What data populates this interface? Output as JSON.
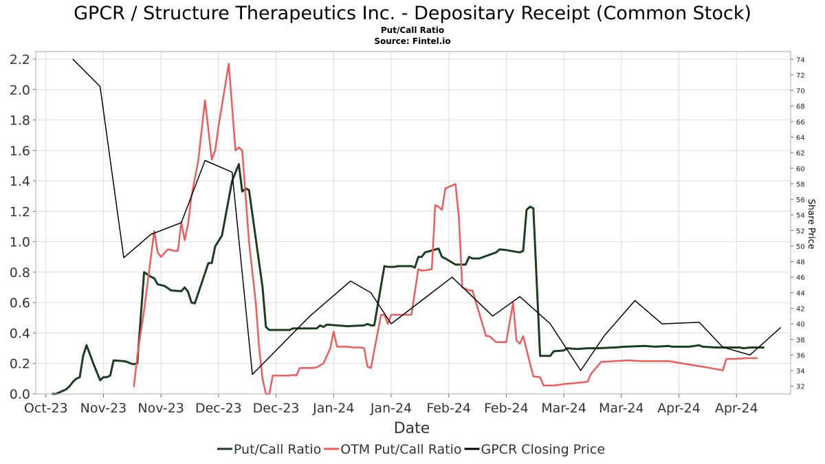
{
  "chart_data": {
    "type": "line",
    "title": "GPCR / Structure Therapeutics Inc. - Depositary Receipt (Common Stock)",
    "subtitle": "Put/Call Ratio",
    "source": "Source: Fintel.io",
    "xlabel": "Date",
    "y2label": "Share Price",
    "x_ticks": [
      {
        "label": "Oct-23",
        "day": 0
      },
      {
        "label": "Nov-23",
        "day": 17
      },
      {
        "label": "Nov-23",
        "day": 34
      },
      {
        "label": "Dec-23",
        "day": 51
      },
      {
        "label": "Dec-23",
        "day": 68
      },
      {
        "label": "Jan-24",
        "day": 85
      },
      {
        "label": "Jan-24",
        "day": 102
      },
      {
        "label": "Feb-24",
        "day": 119
      },
      {
        "label": "Feb-24",
        "day": 136
      },
      {
        "label": "Mar-24",
        "day": 153
      },
      {
        "label": "Mar-24",
        "day": 170
      },
      {
        "label": "Apr-24",
        "day": 187
      },
      {
        "label": "Apr-24",
        "day": 204
      }
    ],
    "xlim": [
      -3,
      220
    ],
    "ylim": [
      0,
      2.25
    ],
    "y_ticks": [
      "0.0",
      "0.2",
      "0.4",
      "0.6",
      "0.8",
      "1.0",
      "1.2",
      "1.4",
      "1.6",
      "1.8",
      "2.0",
      "2.2"
    ],
    "y2lim": [
      31,
      75
    ],
    "y2_ticks": [
      "32",
      "34",
      "36",
      "38",
      "40",
      "42",
      "44",
      "46",
      "48",
      "50",
      "52",
      "54",
      "56",
      "58",
      "60",
      "62",
      "64",
      "66",
      "68",
      "70",
      "72",
      "74"
    ],
    "grid": true,
    "legend": "bottom",
    "series": [
      {
        "name": "Put/Call Ratio",
        "color": "#1a3d1f",
        "axis": "left",
        "width": 3,
        "points": [
          [
            2,
            0
          ],
          [
            3,
            0
          ],
          [
            6,
            0.03
          ],
          [
            7,
            0.05
          ],
          [
            8,
            0.08
          ],
          [
            9,
            0.1
          ],
          [
            10,
            0.11
          ],
          [
            11,
            0.25
          ],
          [
            12,
            0.32
          ],
          [
            14,
            0.2
          ],
          [
            16,
            0.09
          ],
          [
            17,
            0.11
          ],
          [
            18,
            0.11
          ],
          [
            19,
            0.12
          ],
          [
            20,
            0.22
          ],
          [
            23,
            0.215
          ],
          [
            24,
            0.21
          ],
          [
            25,
            0.2
          ],
          [
            26,
            0.195
          ],
          [
            27,
            0.2
          ],
          [
            29,
            0.8
          ],
          [
            31,
            0.77
          ],
          [
            32,
            0.76
          ],
          [
            33,
            0.72
          ],
          [
            35,
            0.71
          ],
          [
            37,
            0.68
          ],
          [
            40,
            0.675
          ],
          [
            41,
            0.7
          ],
          [
            42,
            0.67
          ],
          [
            43,
            0.6
          ],
          [
            44,
            0.595
          ],
          [
            48,
            0.86
          ],
          [
            49,
            0.86
          ],
          [
            50,
            0.97
          ],
          [
            52,
            1.04
          ],
          [
            55,
            1.4
          ],
          [
            57,
            1.51
          ],
          [
            58,
            1.33
          ],
          [
            59,
            1.35
          ],
          [
            60,
            1.34
          ],
          [
            64,
            0.7
          ],
          [
            65,
            0.44
          ],
          [
            66,
            0.42
          ],
          [
            68,
            0.42
          ],
          [
            72,
            0.42
          ],
          [
            73,
            0.43
          ],
          [
            77,
            0.43
          ],
          [
            80,
            0.43
          ],
          [
            81,
            0.45
          ],
          [
            82,
            0.44
          ],
          [
            83,
            0.455
          ],
          [
            86,
            0.45
          ],
          [
            89,
            0.445
          ],
          [
            94,
            0.45
          ],
          [
            95,
            0.46
          ],
          [
            96,
            0.45
          ],
          [
            97,
            0.45
          ],
          [
            100,
            0.84
          ],
          [
            101,
            0.835
          ],
          [
            103,
            0.835
          ],
          [
            104,
            0.84
          ],
          [
            107,
            0.84
          ],
          [
            108,
            0.84
          ],
          [
            109,
            0.83
          ],
          [
            110,
            0.9
          ],
          [
            111,
            0.9
          ],
          [
            112,
            0.93
          ],
          [
            116,
            0.955
          ],
          [
            117,
            0.9
          ],
          [
            118,
            0.89
          ],
          [
            121,
            0.85
          ],
          [
            124,
            0.85
          ],
          [
            125,
            0.9
          ],
          [
            126,
            0.89
          ],
          [
            128,
            0.89
          ],
          [
            133,
            0.93
          ],
          [
            134,
            0.95
          ],
          [
            136,
            0.945
          ],
          [
            140,
            0.93
          ],
          [
            141,
            0.94
          ],
          [
            142,
            1.21
          ],
          [
            143,
            1.23
          ],
          [
            144,
            1.22
          ],
          [
            146,
            0.25
          ],
          [
            149,
            0.25
          ],
          [
            150,
            0.28
          ],
          [
            153,
            0.285
          ],
          [
            154,
            0.3
          ],
          [
            157,
            0.295
          ],
          [
            160,
            0.3
          ],
          [
            162,
            0.3
          ],
          [
            163,
            0.3
          ],
          [
            168,
            0.305
          ],
          [
            171,
            0.31
          ],
          [
            177,
            0.315
          ],
          [
            180,
            0.31
          ],
          [
            184,
            0.315
          ],
          [
            185,
            0.31
          ],
          [
            190,
            0.31
          ],
          [
            193,
            0.32
          ],
          [
            194,
            0.31
          ],
          [
            198,
            0.305
          ],
          [
            202,
            0.305
          ],
          [
            205,
            0.305
          ],
          [
            206,
            0.3
          ],
          [
            208,
            0.305
          ],
          [
            212,
            0.305
          ]
        ]
      },
      {
        "name": "OTM Put/Call Ratio",
        "color": "#f05a5a",
        "axis": "left",
        "width": 2.5,
        "points": [
          [
            26,
            0.05
          ],
          [
            27,
            0.25
          ],
          [
            29,
            0.55
          ],
          [
            32,
            1.07
          ],
          [
            33,
            0.93
          ],
          [
            34,
            0.9
          ],
          [
            36,
            0.95
          ],
          [
            38,
            0.94
          ],
          [
            39,
            0.94
          ],
          [
            40,
            1.13
          ],
          [
            41,
            1.01
          ],
          [
            42,
            1.12
          ],
          [
            43,
            1.3
          ],
          [
            45,
            1.53
          ],
          [
            47,
            1.93
          ],
          [
            49,
            1.54
          ],
          [
            50,
            1.6
          ],
          [
            51,
            1.76
          ],
          [
            54,
            2.17
          ],
          [
            56,
            1.6
          ],
          [
            57,
            1.62
          ],
          [
            58,
            1.6
          ],
          [
            60,
            1.0
          ],
          [
            61,
            0.8
          ],
          [
            62,
            0.6
          ],
          [
            63,
            0.3
          ],
          [
            64,
            0.1
          ],
          [
            65,
            0
          ],
          [
            66,
            0
          ],
          [
            67,
            0.12
          ],
          [
            70,
            0.12
          ],
          [
            72,
            0.12
          ],
          [
            73,
            0.125
          ],
          [
            74,
            0.12
          ],
          [
            75,
            0.17
          ],
          [
            79,
            0.17
          ],
          [
            80,
            0.175
          ],
          [
            82,
            0.2
          ],
          [
            84,
            0.3
          ],
          [
            85,
            0.41
          ],
          [
            86,
            0.31
          ],
          [
            89,
            0.31
          ],
          [
            91,
            0.305
          ],
          [
            93,
            0.305
          ],
          [
            94,
            0.3
          ],
          [
            95,
            0.18
          ],
          [
            96,
            0.17
          ],
          [
            99,
            0.52
          ],
          [
            100,
            0.52
          ],
          [
            101,
            0.46
          ],
          [
            102,
            0.52
          ],
          [
            104,
            0.52
          ],
          [
            106,
            0.52
          ],
          [
            107,
            0.52
          ],
          [
            108,
            0.52
          ],
          [
            110,
            0.82
          ],
          [
            111,
            0.81
          ],
          [
            113,
            0.815
          ],
          [
            114,
            0.82
          ],
          [
            115,
            1.24
          ],
          [
            116,
            1.23
          ],
          [
            117,
            1.21
          ],
          [
            118,
            1.35
          ],
          [
            121,
            1.38
          ],
          [
            122,
            1.16
          ],
          [
            123,
            0.7
          ],
          [
            124,
            0.69
          ],
          [
            125,
            0.68
          ],
          [
            126,
            0.68
          ],
          [
            130,
            0.38
          ],
          [
            131,
            0.38
          ],
          [
            133,
            0.34
          ],
          [
            136,
            0.34
          ],
          [
            138,
            0.6
          ],
          [
            139,
            0.35
          ],
          [
            140,
            0.33
          ],
          [
            141,
            0.38
          ],
          [
            143,
            0.2
          ],
          [
            144,
            0.115
          ],
          [
            146,
            0.11
          ],
          [
            147,
            0.055
          ],
          [
            150,
            0.055
          ],
          [
            152,
            0.06
          ],
          [
            153,
            0.065
          ],
          [
            156,
            0.07
          ],
          [
            160,
            0.08
          ],
          [
            161,
            0.13
          ],
          [
            164,
            0.21
          ],
          [
            168,
            0.215
          ],
          [
            172,
            0.22
          ],
          [
            176,
            0.215
          ],
          [
            180,
            0.215
          ],
          [
            184,
            0.215
          ],
          [
            195,
            0.175
          ],
          [
            200,
            0.155
          ],
          [
            201,
            0.23
          ],
          [
            204,
            0.23
          ],
          [
            207,
            0.235
          ],
          [
            210,
            0.235
          ]
        ]
      },
      {
        "name": "GPCR Closing Price",
        "color": "#000000",
        "axis": "right",
        "width": 1.5,
        "points": [
          [
            8,
            74
          ],
          [
            16,
            70.5
          ],
          [
            23,
            48.5
          ],
          [
            31,
            51.5
          ],
          [
            40,
            53
          ],
          [
            47,
            61
          ],
          [
            55,
            59.5
          ],
          [
            61,
            33.5
          ],
          [
            78,
            41
          ],
          [
            90,
            45.5
          ],
          [
            96,
            44
          ],
          [
            102,
            40
          ],
          [
            120,
            46
          ],
          [
            132,
            41
          ],
          [
            140,
            43.5
          ],
          [
            149,
            40
          ],
          [
            158,
            34
          ],
          [
            165,
            38.5
          ],
          [
            174,
            43
          ],
          [
            182,
            40
          ],
          [
            193,
            40.2
          ],
          [
            200,
            37
          ],
          [
            208,
            36
          ],
          [
            217,
            39.5
          ]
        ]
      }
    ]
  }
}
